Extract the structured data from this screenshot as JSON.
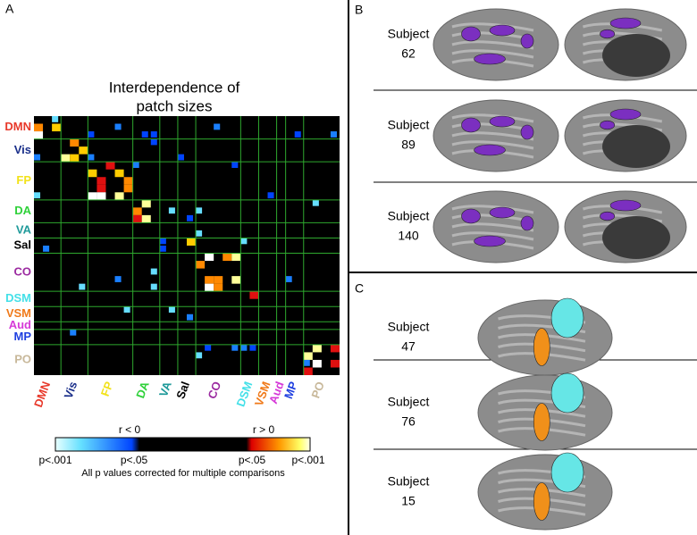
{
  "panel_a": {
    "label": "A",
    "title": [
      "Interdependence of",
      "patch sizes"
    ],
    "row_labels": [
      "DMN",
      "Vis",
      "FP",
      "DA",
      "VA",
      "Sal",
      "CO",
      "DSM",
      "VSM",
      "Aud",
      "MP",
      "PO"
    ],
    "column_labels": [
      "DMN",
      "Vis",
      "FP",
      "DA",
      "VA",
      "Sal",
      "CO",
      "DSM",
      "VSM",
      "Aud",
      "MP",
      "PO"
    ],
    "colorbar": {
      "neg_label": "r < 0",
      "pos_label": "r > 0",
      "ticks": [
        "p<.001",
        "p<.05",
        "p<.05",
        "p<.001"
      ],
      "caption": "All p values corrected for multiple comparisons"
    }
  },
  "panel_b": {
    "label": "B",
    "subjects": [
      {
        "label": "Subject",
        "id": "62"
      },
      {
        "label": "Subject",
        "id": "89"
      },
      {
        "label": "Subject",
        "id": "140"
      }
    ]
  },
  "panel_c": {
    "label": "C",
    "subjects": [
      {
        "label": "Subject",
        "id": "47"
      },
      {
        "label": "Subject",
        "id": "76"
      },
      {
        "label": "Subject",
        "id": "15"
      }
    ]
  }
}
